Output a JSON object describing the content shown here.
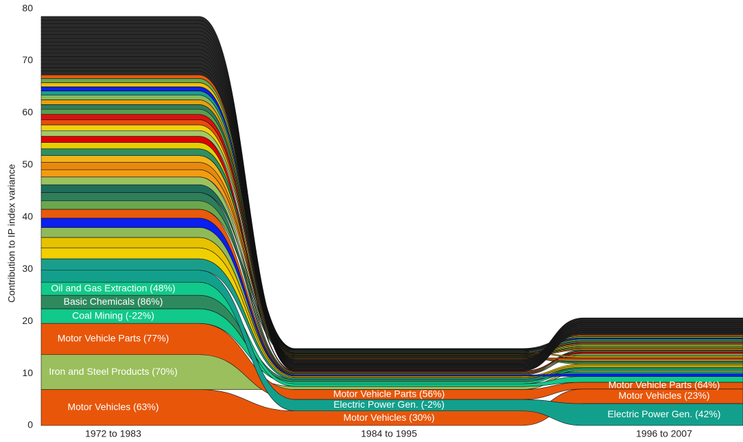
{
  "chart_data": {
    "type": "alluvial",
    "ylabel": "Contribution to IP index variance",
    "categories": [
      "1972 to 1983",
      "1984 to 1995",
      "1996 to 2007"
    ],
    "ylim": [
      0,
      81
    ],
    "yticks": [
      0,
      10,
      20,
      30,
      40,
      50,
      60,
      70,
      80
    ],
    "series": [
      {
        "color": "#e8560a",
        "values": [
          6.9,
          2.8,
          2.8
        ],
        "labels": [
          "Motor Vehicles (63%)",
          "Motor Vehicles (30%)",
          "Motor Vehicles (23%)"
        ]
      },
      {
        "color": "#9bbf5c",
        "values": [
          6.7,
          0.6,
          0.3
        ],
        "labels": [
          "Iron and Steel Products (70%)",
          null,
          null
        ]
      },
      {
        "color": "#e8560a",
        "values": [
          6.0,
          1.9,
          1.3
        ],
        "labels": [
          "Motor Vehicle Parts (77%)",
          "Motor Vehicle Parts (56%)",
          "Motor Vehicle Parts (64%)"
        ]
      },
      {
        "color": "#11c98a",
        "values": [
          2.8,
          0.4,
          0.3
        ],
        "labels": [
          "Coal Mining (-22%)",
          null,
          null
        ]
      },
      {
        "color": "#2e8a5e",
        "values": [
          2.6,
          0.4,
          0.3
        ],
        "labels": [
          "Basic Chemicals (86%)",
          null,
          null
        ]
      },
      {
        "color": "#11c98a",
        "values": [
          2.5,
          0.5,
          1.1
        ],
        "labels": [
          "Oil and Gas Extraction (48%)",
          null,
          null
        ]
      },
      {
        "color": "#12a08c",
        "values": [
          2.3,
          2.2,
          4.2
        ],
        "labels": [
          null,
          "Electric Power Gen. (-2%)",
          "Electric Power Gen. (42%)"
        ]
      },
      {
        "color": "#1a9e8c",
        "values": [
          2.2,
          0.3,
          0.4
        ]
      },
      {
        "color": "#f0d000",
        "values": [
          2.1,
          0.2,
          0.3
        ]
      },
      {
        "color": "#e6c200",
        "values": [
          2.0,
          0.2,
          0.3
        ]
      },
      {
        "color": "#8fba5a",
        "values": [
          1.9,
          0.15,
          0.25
        ]
      },
      {
        "color": "#0a1ff0",
        "values": [
          1.8,
          0.2,
          0.5
        ]
      },
      {
        "color": "#e85a0c",
        "values": [
          1.7,
          0.15,
          0.2
        ]
      },
      {
        "color": "#6aa84f",
        "values": [
          1.6,
          0.1,
          0.3
        ]
      },
      {
        "color": "#2e7d5b",
        "values": [
          1.6,
          0.15,
          0.2
        ]
      },
      {
        "color": "#1f6e5a",
        "values": [
          1.5,
          0.1,
          0.3
        ]
      },
      {
        "color": "#9bc25f",
        "values": [
          1.5,
          0.15,
          0.25
        ]
      },
      {
        "color": "#f39c12",
        "values": [
          1.4,
          0.1,
          0.2
        ]
      },
      {
        "color": "#e8890c",
        "values": [
          1.4,
          0.1,
          0.2
        ]
      },
      {
        "color": "#f2b21a",
        "values": [
          1.3,
          0.12,
          0.3
        ]
      },
      {
        "color": "#2f8f64",
        "values": [
          1.3,
          0.1,
          0.2
        ]
      },
      {
        "color": "#e5d000",
        "values": [
          1.2,
          0.1,
          0.2
        ]
      },
      {
        "color": "#e00000",
        "values": [
          1.2,
          0.15,
          0.25
        ]
      },
      {
        "color": "#a3c868",
        "values": [
          1.1,
          0.1,
          0.2
        ]
      },
      {
        "color": "#f0d010",
        "values": [
          1.1,
          0.1,
          0.2
        ]
      },
      {
        "color": "#e84c0c",
        "values": [
          1.0,
          0.12,
          0.3
        ]
      },
      {
        "color": "#dd1111",
        "values": [
          1.0,
          0.1,
          0.2
        ]
      },
      {
        "color": "#5a9e4e",
        "values": [
          1.0,
          0.1,
          0.2
        ]
      },
      {
        "color": "#2e7d5b",
        "values": [
          0.9,
          0.1,
          0.2
        ]
      },
      {
        "color": "#e8a00c",
        "values": [
          0.9,
          0.1,
          0.3
        ]
      },
      {
        "color": "#8ab95a",
        "values": [
          0.9,
          0.1,
          0.2
        ]
      },
      {
        "color": "#1a9e8c",
        "values": [
          0.8,
          0.08,
          0.2
        ]
      },
      {
        "color": "#0a1ff0",
        "values": [
          0.8,
          0.1,
          0.2
        ]
      },
      {
        "color": "#f0c000",
        "values": [
          0.8,
          0.08,
          0.2
        ]
      },
      {
        "color": "#6aa84f",
        "values": [
          0.8,
          0.1,
          0.2
        ]
      },
      {
        "color": "#e85a0c",
        "values": [
          0.7,
          0.08,
          0.2
        ]
      },
      {
        "color": "#2a2a2a",
        "values": [
          0.7,
          0.1,
          0.2
        ]
      },
      {
        "color": "#2a2a2a",
        "values": [
          0.7,
          0.15,
          0.2
        ]
      },
      {
        "color": "#2a2a2a",
        "values": [
          0.7,
          0.15,
          0.2
        ]
      },
      {
        "color": "#2a2a2a",
        "values": [
          0.7,
          0.15,
          0.2
        ]
      },
      {
        "color": "#2a2a2a",
        "values": [
          0.7,
          0.15,
          0.2
        ]
      },
      {
        "color": "#2a2a2a",
        "values": [
          0.7,
          0.15,
          0.2
        ]
      },
      {
        "color": "#2a2a2a",
        "values": [
          0.7,
          0.15,
          0.2
        ]
      },
      {
        "color": "#2a2a2a",
        "values": [
          0.7,
          0.15,
          0.2
        ]
      },
      {
        "color": "#2a2a2a",
        "values": [
          0.7,
          0.15,
          0.2
        ]
      },
      {
        "color": "#2a2a2a",
        "values": [
          0.7,
          0.15,
          0.2
        ]
      },
      {
        "color": "#2a2a2a",
        "values": [
          0.7,
          0.15,
          0.2
        ]
      },
      {
        "color": "#2a2a2a",
        "values": [
          0.7,
          0.15,
          0.2
        ]
      },
      {
        "color": "#2a2a2a",
        "values": [
          0.7,
          0.15,
          0.2
        ]
      },
      {
        "color": "#2a2a2a",
        "values": [
          0.7,
          0.15,
          0.2
        ]
      },
      {
        "color": "#2a2a2a",
        "values": [
          0.7,
          0.15,
          0.2
        ]
      },
      {
        "color": "#2a2a2a",
        "values": [
          0.7,
          0.15,
          0.2
        ]
      }
    ]
  }
}
